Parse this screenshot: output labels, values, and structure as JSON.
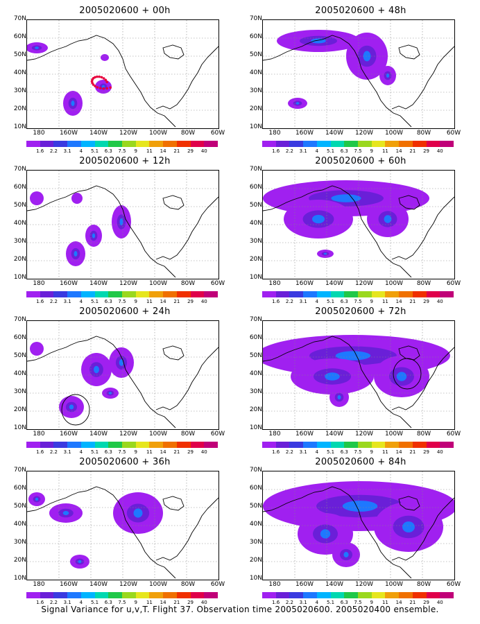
{
  "caption": "Signal Variance for u,v,T. Flight 37. Observation time 2005020600. 2005020400 ensemble.",
  "y_labels": [
    "70N",
    "60N",
    "50N",
    "40N",
    "30N",
    "20N",
    "10N"
  ],
  "x_labels": [
    "180",
    "160W",
    "140W",
    "120W",
    "100W",
    "80W",
    "60W"
  ],
  "colorbar": {
    "labels": [
      "1.6",
      "2.2",
      "3.1",
      "4",
      "5.1",
      "6.3",
      "7.5",
      "9",
      "11",
      "14",
      "21",
      "29",
      "40"
    ],
    "colors": [
      "#a020f0",
      "#6a1fd8",
      "#3a3ae0",
      "#1e78ff",
      "#00b4ff",
      "#00d8b0",
      "#20c848",
      "#9ad81e",
      "#e6e61e",
      "#f0a00a",
      "#f07000",
      "#f03000",
      "#e0004a",
      "#c00078"
    ]
  },
  "panels": [
    {
      "id": "p00",
      "title": "2005020600 + 00h"
    },
    {
      "id": "p48",
      "title": "2005020600 + 48h"
    },
    {
      "id": "p12",
      "title": "2005020600 + 12h"
    },
    {
      "id": "p60",
      "title": "2005020600 + 60h"
    },
    {
      "id": "p24",
      "title": "2005020600 + 24h"
    },
    {
      "id": "p72",
      "title": "2005020600 + 72h"
    },
    {
      "id": "p36",
      "title": "2005020600 + 36h"
    },
    {
      "id": "p84",
      "title": "2005020600 + 84h"
    }
  ]
}
